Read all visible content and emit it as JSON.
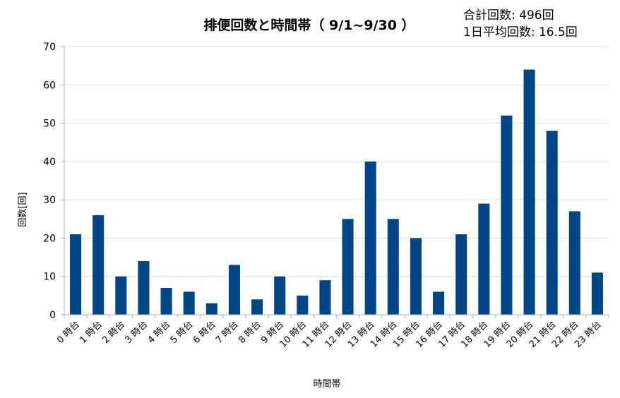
{
  "chart_data": {
    "type": "bar",
    "title": "排便回数と時間帯（ 9/1~9/30 ）",
    "summary": {
      "total": "合計回数: 496回",
      "daily_avg": "1日平均回数: 16.5回"
    },
    "xlabel": "時間帯",
    "ylabel": "回数[回]",
    "ylim": [
      0,
      70
    ],
    "yticks": [
      0,
      10,
      20,
      30,
      40,
      50,
      60,
      70
    ],
    "grid": true,
    "bar_color": "#004586",
    "categories": [
      "0 時台",
      "1 時台",
      "2 時台",
      "3 時台",
      "4 時台",
      "5 時台",
      "6 時台",
      "7 時台",
      "8 時台",
      "9 時台",
      "10 時台",
      "11 時台",
      "12 時台",
      "13 時台",
      "14 時台",
      "15 時台",
      "16 時台",
      "17 時台",
      "18 時台",
      "19 時台",
      "20 時台",
      "21 時台",
      "22 時台",
      "23 時台"
    ],
    "values": [
      21,
      26,
      10,
      14,
      7,
      6,
      3,
      13,
      4,
      10,
      5,
      9,
      25,
      40,
      25,
      20,
      6,
      21,
      29,
      52,
      64,
      48,
      27,
      11
    ]
  }
}
